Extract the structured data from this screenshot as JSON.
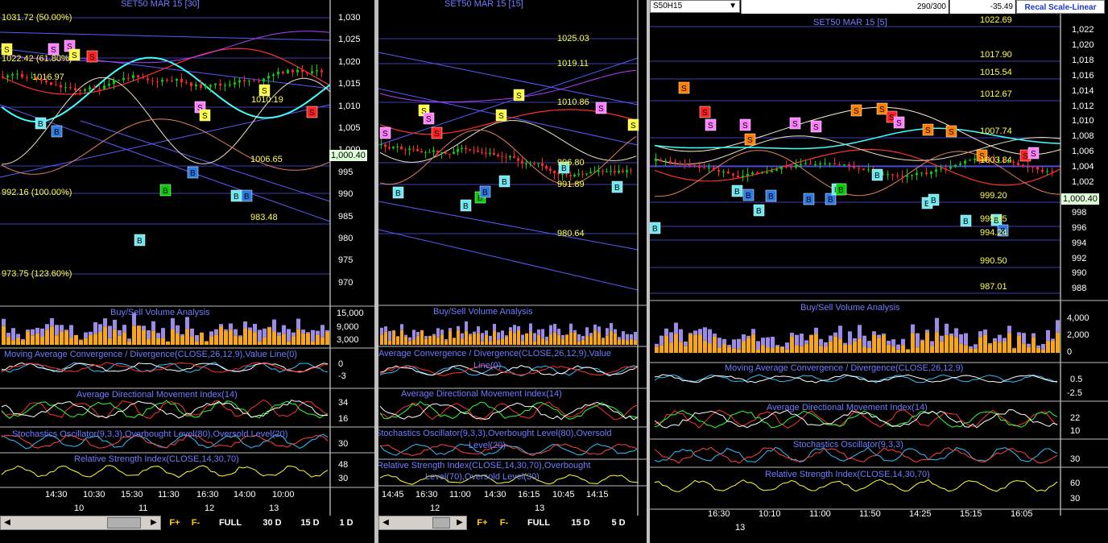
{
  "colors": {
    "grid": "#303090",
    "sell": "#ff0000",
    "buy": "#00c000",
    "volume_sell": "#f7a51b",
    "volume_buy": "#9c8ce8",
    "fib": "#ffff40",
    "axis_text": "#ffffff"
  },
  "left": {
    "title": "SET50 MAR 15   [30]",
    "price_axis": [
      "1,030",
      "1,025",
      "1,020",
      "1,015",
      "1,010",
      "1,005",
      "1,000",
      "995",
      "990",
      "985",
      "980",
      "975",
      "970"
    ],
    "current_price": "1,000.40",
    "fib_labels": [
      "1031.72 (50.00%)",
      "1022.42 (61.80%)",
      "1010.19",
      "1016.97",
      "1006.65",
      "992.16 (100.00%)",
      "983.48",
      "973.75 (123.60%)"
    ],
    "indicators": {
      "volume": "Buy/Sell Volume Analysis",
      "macd": "Moving Average Convergence / Divergence(CLOSE,26,12,9),Value Line(0)",
      "adx": "Average Directional Movement Index(14)",
      "stoch": "Stochastics Oscillator(9,3,3),Overbought Level(80),Oversold Level(20)",
      "rsi": "Relative Strength Index(CLOSE,14,30,70)"
    },
    "vol_axis": [
      "15,000",
      "9,000",
      "3,000"
    ],
    "macd_axis": [
      "0",
      "-3"
    ],
    "adx_axis": [
      "34",
      "16"
    ],
    "stoch_axis": [
      "30"
    ],
    "rsi_axis": [
      "48",
      "30"
    ],
    "time_axis": [
      "14:30",
      "10:30",
      "15:30",
      "11:30",
      "16:30",
      "14:00",
      "10:00"
    ],
    "date_axis": [
      "10",
      "11",
      "12",
      "13"
    ],
    "buttons": [
      "F+",
      "F-",
      "FULL",
      "30 D",
      "15 D",
      "1 D"
    ]
  },
  "middle": {
    "title": "SET50 MAR 15   [15]",
    "fib_labels": [
      "1025.03",
      "1019.11",
      "1010.86",
      "996.80",
      "991.89",
      "980.64"
    ],
    "indicators": {
      "volume": "Buy/Sell Volume Analysis",
      "macd": "Average Convergence / Divergence(CLOSE,26,12,9),Value",
      "macd2": "Line(0)",
      "adx": "Average Directional Movement Index(14)",
      "stoch": "Stochastics Oscillator(9,3,3),Overbought Level(80),Oversold",
      "stoch2": "Level(20)",
      "rsi": "Relative Strength Index(CLOSE,14,30,70),Overbought",
      "rsi2": "Level(70),Oversold Level(30)"
    },
    "time_axis": [
      "14:45",
      "16:30",
      "11:00",
      "14:30",
      "16:15",
      "10:45",
      "14:15"
    ],
    "date_axis": [
      "12",
      "13"
    ],
    "buttons": [
      "F+",
      "F-",
      "FULL",
      "15 D",
      "5 D"
    ]
  },
  "right": {
    "symbol": "S50H15",
    "counter": "290/300",
    "change": "-35.49",
    "recal": "Recal Scale-Linear",
    "title": "SET50 MAR 15   [5]",
    "price_axis": [
      "1,022",
      "1,020",
      "1,018",
      "1,016",
      "1,014",
      "1,012",
      "1,010",
      "1,008",
      "1,006",
      "1,004",
      "1,002",
      "1,000",
      "998",
      "996",
      "994",
      "992",
      "990",
      "988"
    ],
    "current_price": "1,000.40",
    "fib_labels": [
      "1022.69",
      "1017.90",
      "1015.54",
      "1012.67",
      "1007.74",
      "1003.84",
      "999.20",
      "995.85",
      "994.24",
      "990.50",
      "987.01"
    ],
    "indicators": {
      "volume": "Buy/Sell Volume Analysis",
      "macd": "Moving Average Convergence / Divergence(CLOSE,26,12,9)",
      "adx": "Average Directional Movement Index(14)",
      "stoch": "Stochastics Oscillator(9,3,3)",
      "rsi": "Relative Strength Index(CLOSE,14,30,70)"
    },
    "vol_axis": [
      "4,000",
      "2,000",
      "0"
    ],
    "macd_axis": [
      "0.5",
      "-2.5"
    ],
    "adx_axis": [
      "22",
      "10"
    ],
    "stoch_axis": [
      "30"
    ],
    "rsi_axis": [
      "60",
      "30"
    ],
    "time_axis": [
      "16:30",
      "10:10",
      "11:00",
      "11:50",
      "14:25",
      "15:15",
      "16:05"
    ],
    "date_axis": [
      "13"
    ]
  }
}
